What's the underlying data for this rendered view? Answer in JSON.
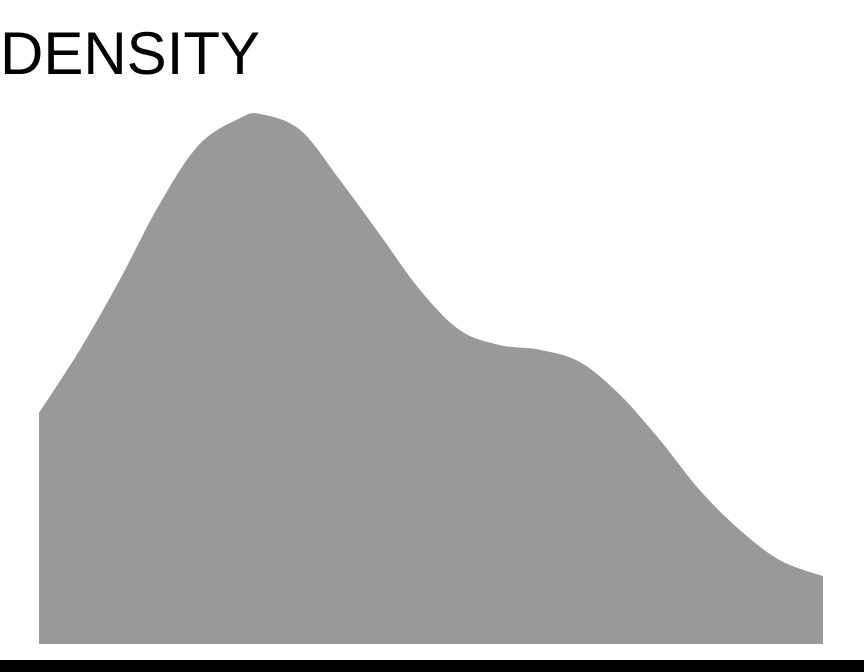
{
  "chart_data": {
    "type": "area",
    "title": "DENSITY",
    "x": [
      0,
      5.2,
      10.3,
      15.3,
      20.4,
      25.6,
      28.2,
      33.3,
      38.4,
      43.5,
      48.6,
      53.7,
      58.8,
      63.9,
      69.0,
      74.1,
      79.2,
      84.3,
      89.4,
      94.5,
      100
    ],
    "values": [
      43.6,
      55.5,
      68.7,
      82.8,
      94.2,
      99.2,
      100,
      97,
      87.5,
      77.2,
      66.8,
      59.2,
      56.4,
      55.5,
      53.2,
      47,
      38.5,
      29,
      21.5,
      15.8,
      12.8
    ],
    "color": "#999999",
    "xlim": [
      0,
      100
    ],
    "ylim": [
      0,
      100
    ]
  }
}
